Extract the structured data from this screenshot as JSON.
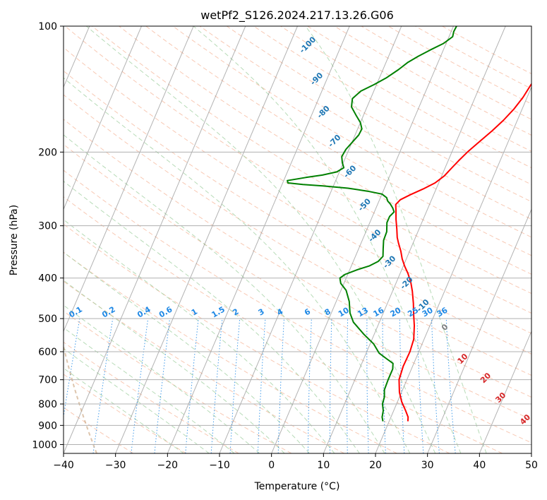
{
  "chart_data": {
    "type": "line",
    "title": "wetPf2_S126.2024.217.13.26.G06",
    "xlabel": "Temperature (°C)",
    "ylabel": "Pressure (hPa)",
    "xlim": [
      -40,
      50
    ],
    "ylim": [
      1050,
      100
    ],
    "y_scale": "log",
    "x_ticks": [
      "−40",
      "−30",
      "−20",
      "−10",
      "0",
      "10",
      "20",
      "30",
      "40",
      "50"
    ],
    "y_ticks": [
      "100",
      "200",
      "300",
      "400",
      "500",
      "600",
      "700",
      "800",
      "900",
      "1000"
    ],
    "grid": true,
    "colors": {
      "temperature": "#ff0000",
      "dewpoint": "#008000",
      "isotherm": "#808080",
      "dry_adiabat": "#f4a582",
      "moist_adiabat": "#99cc99",
      "mixing_ratio": "#1e88e5",
      "blue_label": "#1f77b4",
      "red_label": "#d62728",
      "gray_label": "#7f7f7f",
      "dashed_brown": "#c8a078"
    },
    "series": [
      {
        "key": "temperature",
        "points": [
          [
            23.6,
            880
          ],
          [
            23.3,
            860
          ],
          [
            22.3,
            830
          ],
          [
            20.8,
            790
          ],
          [
            19.6,
            750
          ],
          [
            18.5,
            700
          ],
          [
            18.2,
            650
          ],
          [
            18.3,
            600
          ],
          [
            18.0,
            560
          ],
          [
            17.0,
            520
          ],
          [
            16.0,
            490
          ],
          [
            15.0,
            460
          ],
          [
            13.8,
            430
          ],
          [
            12.8,
            410
          ],
          [
            11.5,
            390
          ],
          [
            10.3,
            375
          ],
          [
            9.2,
            360
          ],
          [
            8.3,
            345
          ],
          [
            7.2,
            330
          ],
          [
            6.5,
            320
          ],
          [
            5.7,
            305
          ],
          [
            4.8,
            290
          ],
          [
            4.0,
            275
          ],
          [
            3.5,
            267
          ],
          [
            4.0,
            260
          ],
          [
            5.5,
            253
          ],
          [
            7.5,
            245
          ],
          [
            9.3,
            237
          ],
          [
            10.5,
            228
          ],
          [
            11.3,
            218
          ],
          [
            12.0,
            210
          ],
          [
            13.0,
            200
          ],
          [
            14.3,
            190
          ],
          [
            16.0,
            178
          ],
          [
            17.3,
            168
          ],
          [
            18.4,
            158
          ],
          [
            19.2,
            148
          ],
          [
            19.7,
            138
          ],
          [
            20.3,
            132
          ],
          [
            21.3,
            126
          ],
          [
            22.6,
            120
          ],
          [
            23.8,
            113
          ],
          [
            25.0,
            106
          ],
          [
            26.2,
            100
          ]
        ],
        "name": ""
      },
      {
        "key": "dewpoint",
        "points": [
          [
            18.8,
            880
          ],
          [
            18.3,
            860
          ],
          [
            18.0,
            830
          ],
          [
            17.3,
            800
          ],
          [
            17.1,
            770
          ],
          [
            16.5,
            740
          ],
          [
            16.4,
            700
          ],
          [
            16.4,
            660
          ],
          [
            16.0,
            640
          ],
          [
            14.5,
            625
          ],
          [
            12.5,
            605
          ],
          [
            10.7,
            575
          ],
          [
            8.0,
            545
          ],
          [
            5.0,
            510
          ],
          [
            3.6,
            485
          ],
          [
            2.5,
            455
          ],
          [
            1.0,
            428
          ],
          [
            -0.6,
            412
          ],
          [
            -1.2,
            400
          ],
          [
            -0.5,
            392
          ],
          [
            1.5,
            382
          ],
          [
            3.5,
            374
          ],
          [
            4.8,
            365
          ],
          [
            5.3,
            355
          ],
          [
            4.7,
            340
          ],
          [
            4.1,
            325
          ],
          [
            4.0,
            310
          ],
          [
            3.3,
            295
          ],
          [
            3.3,
            285
          ],
          [
            3.8,
            278
          ],
          [
            3.2,
            272
          ],
          [
            2.4,
            266
          ],
          [
            1.7,
            262
          ],
          [
            1.2,
            257
          ],
          [
            0.0,
            252
          ],
          [
            -3.0,
            248
          ],
          [
            -7.0,
            244
          ],
          [
            -12.0,
            241
          ],
          [
            -16.0,
            239
          ],
          [
            -19.0,
            237
          ],
          [
            -19.3,
            234
          ],
          [
            -16.0,
            230
          ],
          [
            -13.0,
            227
          ],
          [
            -10.5,
            223
          ],
          [
            -9.5,
            218
          ],
          [
            -10.2,
            212
          ],
          [
            -10.8,
            205
          ],
          [
            -10.6,
            197
          ],
          [
            -10.0,
            190
          ],
          [
            -9.3,
            182
          ],
          [
            -9.2,
            176
          ],
          [
            -10.0,
            170
          ],
          [
            -11.5,
            163
          ],
          [
            -13.0,
            156
          ],
          [
            -13.5,
            149
          ],
          [
            -12.5,
            143
          ],
          [
            -10.5,
            138
          ],
          [
            -8.7,
            133
          ],
          [
            -7.0,
            127
          ],
          [
            -5.8,
            122
          ],
          [
            -4.3,
            118
          ],
          [
            -2.5,
            114
          ],
          [
            -0.5,
            110
          ],
          [
            0.7,
            106
          ],
          [
            0.5,
            103
          ],
          [
            0.6,
            100
          ]
        ],
        "name": ""
      }
    ],
    "isotherm_labels": [
      {
        "text": "-100",
        "x": -26.0,
        "p": 112
      },
      {
        "text": "-90",
        "x": -21.5,
        "p": 135
      },
      {
        "text": "-80",
        "x": -17.5,
        "p": 162
      },
      {
        "text": "-70",
        "x": -13.0,
        "p": 190
      },
      {
        "text": "-60",
        "x": -7.5,
        "p": 225
      },
      {
        "text": "-50",
        "x": -2.0,
        "p": 270
      },
      {
        "text": "-40",
        "x": 2.5,
        "p": 320
      },
      {
        "text": "-30",
        "x": 7.5,
        "p": 370
      },
      {
        "text": "-20",
        "x": 12.5,
        "p": 415
      },
      {
        "text": "-10",
        "x": 17.5,
        "p": 470
      },
      {
        "text": "0",
        "x": 23.5,
        "p": 530
      },
      {
        "text": "10",
        "x": 29.5,
        "p": 630
      },
      {
        "text": "20",
        "x": 35.5,
        "p": 700
      },
      {
        "text": "30",
        "x": 40.0,
        "p": 780
      },
      {
        "text": "40",
        "x": 46.5,
        "p": 880
      }
    ],
    "mixing_ratio_labels": [
      "0.1",
      "0.2",
      "0.4",
      "0.6",
      "1",
      "1.5",
      "2",
      "3",
      "4",
      "6",
      "8",
      "10",
      "13",
      "16",
      "20",
      "25",
      "30",
      "36"
    ]
  }
}
